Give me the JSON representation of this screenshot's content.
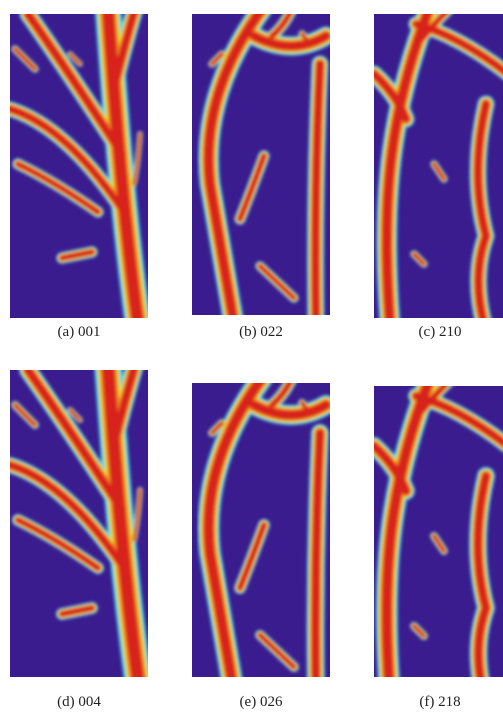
{
  "panels": [
    {
      "caption": "(a) 001"
    },
    {
      "caption": "(b) 022"
    },
    {
      "caption": "(c) 210"
    },
    {
      "caption": "(d) 004"
    },
    {
      "caption": "(e) 026"
    },
    {
      "caption": "(f) 218"
    }
  ]
}
